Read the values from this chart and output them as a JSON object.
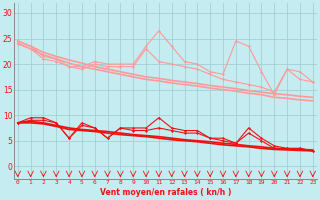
{
  "x": [
    0,
    1,
    2,
    3,
    4,
    5,
    6,
    7,
    8,
    9,
    10,
    11,
    12,
    13,
    14,
    15,
    16,
    17,
    18,
    19,
    20,
    21,
    22,
    23
  ],
  "line1_upper": [
    24.5,
    23.5,
    21.5,
    21.0,
    19.5,
    19.5,
    20.5,
    20.0,
    20.0,
    20.0,
    23.5,
    26.5,
    23.5,
    20.5,
    20.0,
    18.5,
    18.0,
    24.5,
    23.5,
    18.5,
    14.0,
    19.0,
    18.5,
    16.5
  ],
  "line2_upper": [
    24.0,
    23.0,
    21.0,
    20.5,
    19.5,
    19.0,
    20.0,
    19.5,
    19.5,
    19.5,
    23.0,
    20.5,
    20.0,
    19.5,
    19.0,
    18.0,
    17.0,
    16.5,
    16.0,
    15.5,
    14.5,
    19.0,
    17.0,
    16.5
  ],
  "line3_upper_trend": [
    24.5,
    23.5,
    22.3,
    21.5,
    20.8,
    20.2,
    19.5,
    19.0,
    18.5,
    18.0,
    17.5,
    17.2,
    16.8,
    16.5,
    16.2,
    15.8,
    15.5,
    15.2,
    14.8,
    14.5,
    14.2,
    14.0,
    13.7,
    13.5
  ],
  "line4_upper_trend": [
    24.0,
    23.0,
    21.8,
    21.0,
    20.2,
    19.5,
    19.0,
    18.5,
    18.0,
    17.5,
    17.0,
    16.7,
    16.3,
    16.0,
    15.7,
    15.3,
    15.0,
    14.7,
    14.3,
    14.0,
    13.5,
    13.3,
    13.0,
    12.8
  ],
  "line1_lower": [
    8.5,
    9.5,
    9.5,
    8.5,
    5.5,
    8.5,
    7.5,
    5.5,
    7.5,
    7.5,
    7.5,
    9.5,
    7.5,
    7.0,
    7.0,
    5.5,
    5.5,
    4.5,
    7.5,
    5.5,
    4.0,
    3.5,
    3.5,
    3.0
  ],
  "line2_lower": [
    8.5,
    9.0,
    9.0,
    8.5,
    5.5,
    8.0,
    7.5,
    5.5,
    7.5,
    7.0,
    7.0,
    7.5,
    7.0,
    6.5,
    6.5,
    5.5,
    5.0,
    4.5,
    6.5,
    5.0,
    3.5,
    3.5,
    3.5,
    3.0
  ],
  "line3_lower_trend": [
    8.5,
    8.8,
    8.5,
    8.0,
    7.5,
    7.2,
    7.0,
    6.8,
    6.5,
    6.2,
    6.0,
    5.8,
    5.5,
    5.2,
    5.0,
    4.8,
    4.5,
    4.3,
    4.0,
    3.8,
    3.5,
    3.4,
    3.3,
    3.2
  ],
  "line4_lower_trend": [
    8.5,
    8.5,
    8.3,
    7.8,
    7.2,
    7.0,
    6.8,
    6.5,
    6.2,
    6.0,
    5.8,
    5.5,
    5.2,
    5.0,
    4.8,
    4.5,
    4.2,
    4.0,
    3.8,
    3.5,
    3.3,
    3.2,
    3.1,
    3.0
  ],
  "color_light": "#FF9999",
  "color_dark": "#EE1111",
  "bg_color": "#C5ECF0",
  "grid_color": "#A0D0D4",
  "xlabel": "Vent moyen/en rafales ( kn/h )",
  "yticks": [
    0,
    5,
    10,
    15,
    20,
    25,
    30
  ],
  "ylim": [
    -2.5,
    32
  ],
  "xlim": [
    -0.3,
    23.3
  ]
}
